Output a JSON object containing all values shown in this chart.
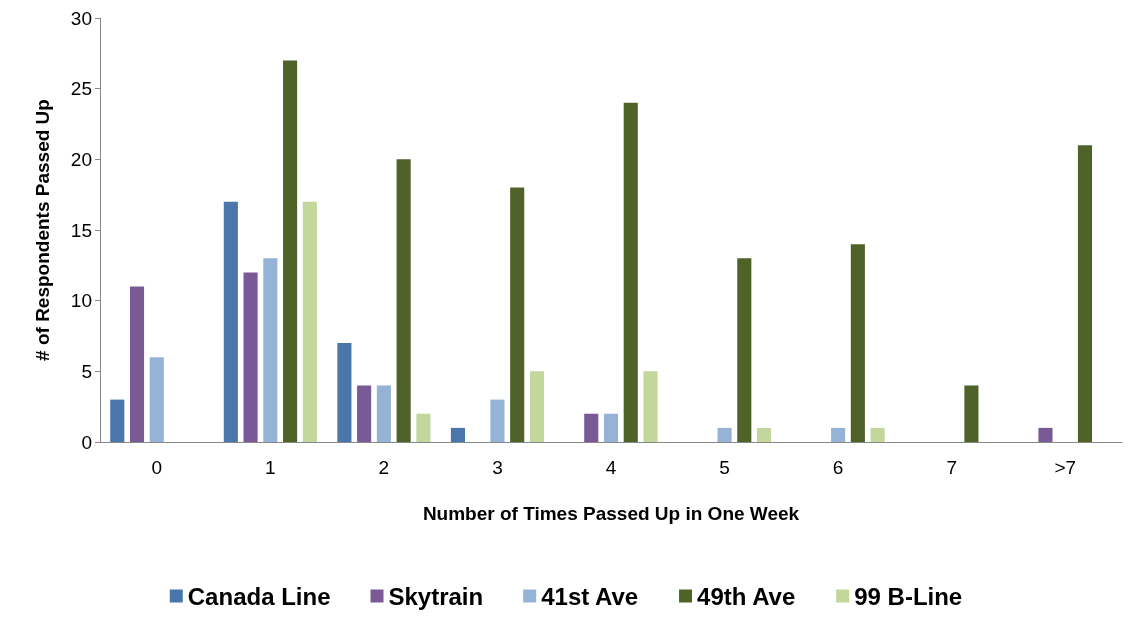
{
  "chart_data": {
    "type": "bar",
    "xlabel": "Number of Times Passed Up in One Week",
    "ylabel": "# of Respondents Passed Up",
    "categories": [
      "0",
      "1",
      "2",
      "3",
      "4",
      "5",
      "6",
      "7",
      ">7"
    ],
    "series": [
      {
        "name": "Canada Line",
        "color": "#4a76ab",
        "values": [
          3,
          17,
          7,
          1,
          null,
          null,
          null,
          null,
          null
        ]
      },
      {
        "name": "Skytrain",
        "color": "#7a5a96",
        "values": [
          11,
          12,
          4,
          null,
          2,
          null,
          null,
          null,
          1
        ]
      },
      {
        "name": "41st Ave",
        "color": "#95b3d7",
        "values": [
          6,
          13,
          4,
          3,
          2,
          1,
          1,
          null,
          null
        ]
      },
      {
        "name": "49th Ave",
        "color": "#4f6228",
        "values": [
          null,
          27,
          20,
          18,
          24,
          13,
          14,
          4,
          21
        ]
      },
      {
        "name": "99 B-Line",
        "color": "#c3d69b",
        "values": [
          null,
          17,
          2,
          5,
          5,
          1,
          1,
          null,
          null
        ]
      }
    ],
    "ylim": [
      0,
      30
    ],
    "yticks": [
      0,
      5,
      10,
      15,
      20,
      25,
      30
    ],
    "grid": false,
    "legend": "bottom"
  }
}
